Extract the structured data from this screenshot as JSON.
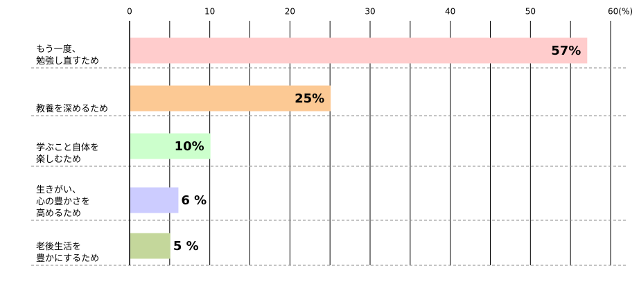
{
  "chart_data": {
    "type": "bar",
    "orientation": "horizontal",
    "categories": [
      "もう一度、\n勉強し直すため",
      "教養を深めるため",
      "学ぶこと自体を\n楽しむため",
      "生きがい、\n心の豊かさを\n高めるため",
      "老後生活を\n豊かにするため"
    ],
    "values": [
      57,
      25,
      10,
      6,
      5
    ],
    "value_labels": [
      "57%",
      "25%",
      "10%",
      "6 %",
      "5 %"
    ],
    "colors": [
      "#ffcccc",
      "#fcc994",
      "#ccffcc",
      "#ccccff",
      "#c4d79b"
    ],
    "xlim": [
      0,
      60
    ],
    "xticks": [
      0,
      10,
      20,
      30,
      40,
      50,
      {
        "value": 60,
        "label": "60(%)"
      }
    ],
    "xminor": [
      5,
      15,
      25,
      35,
      45,
      55
    ],
    "grid": true
  }
}
